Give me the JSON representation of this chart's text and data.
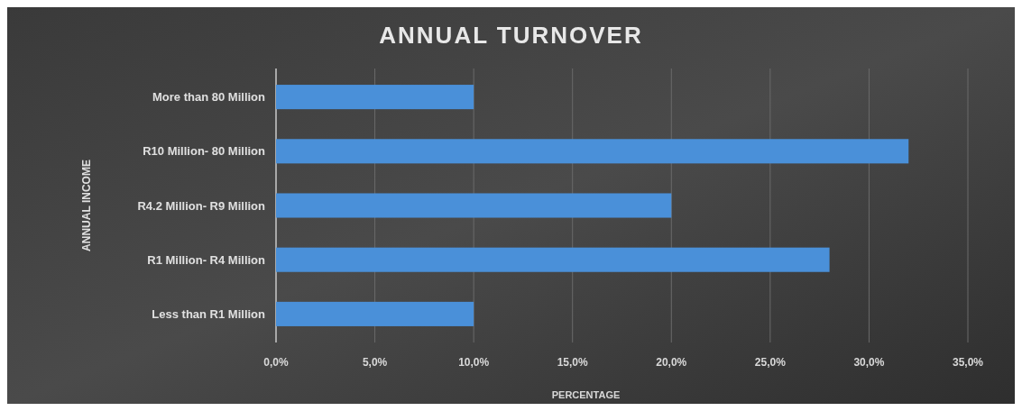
{
  "chart_data": {
    "type": "bar",
    "orientation": "horizontal",
    "title": "ANNUAL TURNOVER",
    "xlabel": "PERCENTAGE",
    "ylabel": "ANNUAL INCOME",
    "categories": [
      "More than 80 Million",
      "R10 Million- 80 Million",
      "R4.2 Million- R9 Million",
      "R1 Million- R4 Million",
      "Less than R1 Million"
    ],
    "values": [
      10,
      32,
      20,
      28,
      10
    ],
    "color": "#4a90d9",
    "xlim": [
      0,
      35
    ],
    "xticks": [
      {
        "value": 0,
        "label": "0,0%"
      },
      {
        "value": 5,
        "label": "5,0%"
      },
      {
        "value": 10,
        "label": "10,0%"
      },
      {
        "value": 15,
        "label": "15,0%"
      },
      {
        "value": 20,
        "label": "20,0%"
      },
      {
        "value": 25,
        "label": "25,0%"
      },
      {
        "value": 30,
        "label": "30,0%"
      },
      {
        "value": 35,
        "label": "35,0%"
      }
    ],
    "grid": "x"
  }
}
